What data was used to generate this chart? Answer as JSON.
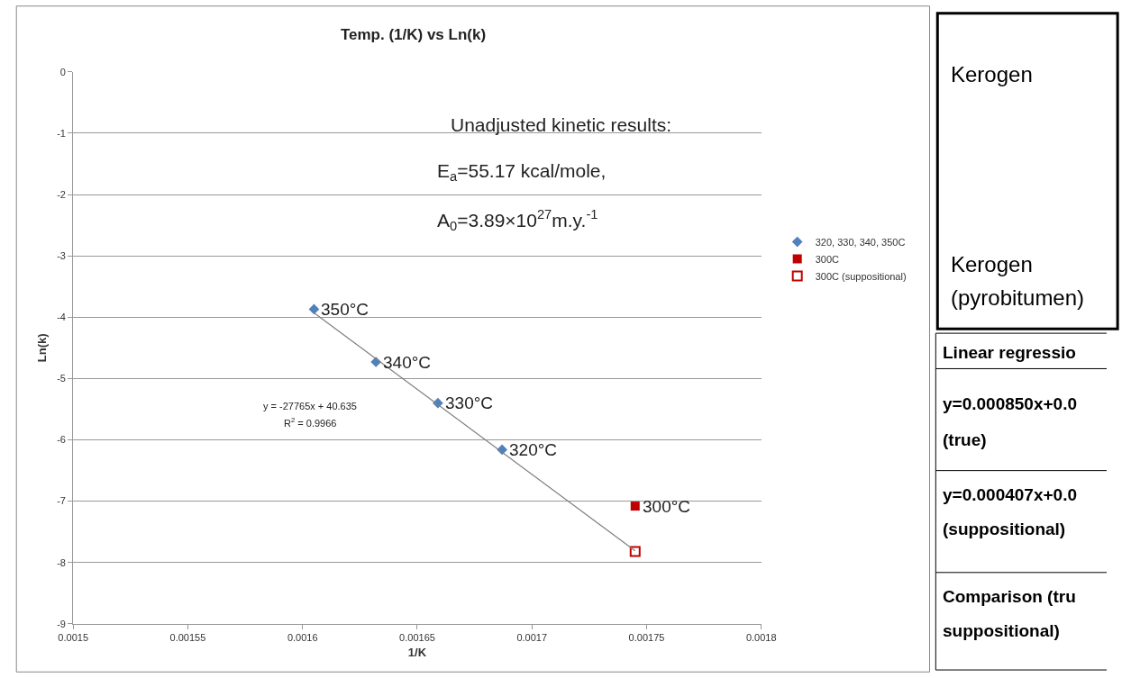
{
  "chart_data": [
    {
      "type": "scatter",
      "title": "Temp. (1/K) vs Ln(k)",
      "xlabel": "1/K",
      "ylabel": "Ln(k)",
      "xlim": [
        0.0015,
        0.0018
      ],
      "xticks": [
        0.0015,
        0.00155,
        0.0016,
        0.00165,
        0.0017,
        0.00175,
        0.0018
      ],
      "ylim": [
        -9,
        0
      ],
      "yticks": [
        -9,
        -8,
        -7,
        -6,
        -5,
        -4,
        -3,
        -2,
        -1,
        0
      ],
      "grid": "y",
      "legend": "right",
      "series": [
        {
          "name": "320, 330, 340, 350C",
          "color": "#4f81bd",
          "marker": "diamond",
          "x": [
            0.001605,
            0.001632,
            0.001659,
            0.001687
          ],
          "values": [
            -3.87,
            -4.73,
            -5.4,
            -6.16
          ]
        },
        {
          "name": "300C",
          "color": "#c00000",
          "marker": "square",
          "x": [
            0.001745
          ],
          "values": [
            -7.08
          ]
        },
        {
          "name": "300C (suppositional)",
          "color": "#c00000",
          "marker": "square-open",
          "x": [
            0.001745
          ],
          "values": [
            -7.82
          ]
        },
        {
          "type": "line",
          "color": "#7f7f7f",
          "marker": "none",
          "x": [
            0.001605,
            0.001745
          ],
          "values": [
            -3.93,
            -7.81
          ]
        }
      ],
      "annotations": [
        {
          "text": "350°C",
          "x": 0.001605,
          "y": -3.87
        },
        {
          "text": "340°C",
          "x": 0.001632,
          "y": -4.73
        },
        {
          "text": "330°C",
          "x": 0.001659,
          "y": -5.4
        },
        {
          "text": "320°C",
          "x": 0.001687,
          "y": -6.16
        },
        {
          "text": "300°C",
          "x": 0.001745,
          "y": -7.08
        },
        "y = -27765x + 40.635",
        "R$^{2}$ = 0.9966",
        "Unadjusted kinetic results:",
        "E$_{a}$=55.17 kcal/mole,",
        "A$_{0}$=3.89×10$^{27}$m.y.$^{-1}$"
      ]
    },
    {
      "type": "other",
      "annotations": [
        "Kerogen",
        "Kerogen",
        "(pyrobitumen)",
        "Linear regressio",
        "y=0.000850x+0.0",
        "(true)",
        "y=0.000407x+0.0",
        "(suppositional)",
        "Comparison (tru",
        "suppositional)"
      ]
    }
  ]
}
